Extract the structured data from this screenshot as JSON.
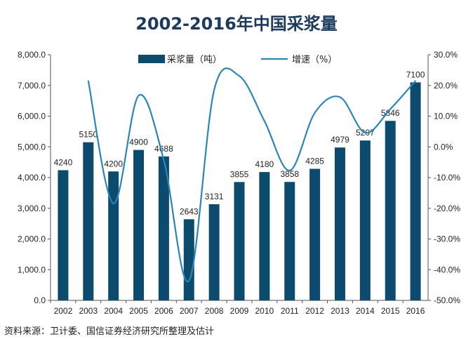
{
  "title": "2002-2016年中国采浆量",
  "source": "资料来源：卫计委、国信证券经济研究所整理及估计",
  "colors": {
    "bar": "#0c4a6e",
    "line": "#2a86b8",
    "text": "#222222",
    "title": "#1b3a5c"
  },
  "chart_data": {
    "type": "bar",
    "title": "2002-2016年中国采浆量",
    "categories": [
      "2002",
      "2003",
      "2004",
      "2005",
      "2006",
      "2007",
      "2008",
      "2009",
      "2010",
      "2011",
      "2012",
      "2013",
      "2014",
      "2015",
      "2016"
    ],
    "series": [
      {
        "name": "采浆量（吨）",
        "type": "bar",
        "axis": "left",
        "values": [
          4240,
          5150,
          4200,
          4900,
          4688,
          2643,
          3131,
          3855,
          4180,
          3858,
          4285,
          4979,
          5207,
          5846,
          7100
        ]
      },
      {
        "name": "增速（%）",
        "type": "line",
        "axis": "right",
        "values": [
          null,
          21.5,
          -18.4,
          16.7,
          -4.3,
          -43.6,
          18.5,
          23.1,
          8.4,
          -7.7,
          11.1,
          16.2,
          4.6,
          12.3,
          21.5
        ]
      }
    ],
    "y_left": {
      "ylim": [
        0,
        8000
      ],
      "ticks": [
        "0.0",
        "1,000.0",
        "2,000.0",
        "3,000.0",
        "4,000.0",
        "5,000.0",
        "6,000.0",
        "7,000.0",
        "8,000.0"
      ]
    },
    "y_right": {
      "ylim": [
        -50,
        30
      ],
      "ticks": [
        "-50.0%",
        "-40.0%",
        "-30.0%",
        "-20.0%",
        "-10.0%",
        "0.0%",
        "10.0%",
        "20.0%",
        "30.0%"
      ]
    },
    "legend_position": "top",
    "grid": false
  }
}
